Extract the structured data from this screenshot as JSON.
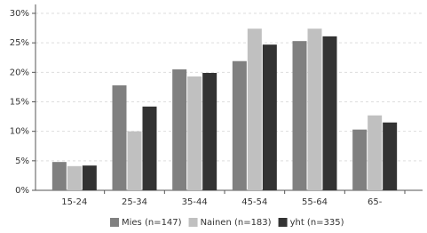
{
  "chart_data": {
    "type": "bar",
    "categories": [
      "15-24",
      "25-34",
      "35-44",
      "45-54",
      "55-64",
      "65-"
    ],
    "series": [
      {
        "name": "Mies (n=147)",
        "color": "#808080",
        "values": [
          4.8,
          17.8,
          20.5,
          21.9,
          25.3,
          10.3
        ]
      },
      {
        "name": "Nainen (n=183)",
        "color": "#c0c0c0",
        "values": [
          4.1,
          10.0,
          19.3,
          27.4,
          27.4,
          12.7
        ]
      },
      {
        "name": "yht (n=335)",
        "color": "#333333",
        "values": [
          4.2,
          14.2,
          19.9,
          24.7,
          26.1,
          11.5
        ]
      }
    ],
    "ylim": [
      0,
      30
    ],
    "yticks": [
      {
        "value": 0,
        "label": "0%"
      },
      {
        "value": 5,
        "label": "5%"
      },
      {
        "value": 10,
        "label": "10%"
      },
      {
        "value": 15,
        "label": "15%"
      },
      {
        "value": 20,
        "label": "20%"
      },
      {
        "value": 25,
        "label": "25%"
      },
      {
        "value": 30,
        "label": "30%"
      }
    ],
    "grid": true,
    "legend": "bottom"
  }
}
